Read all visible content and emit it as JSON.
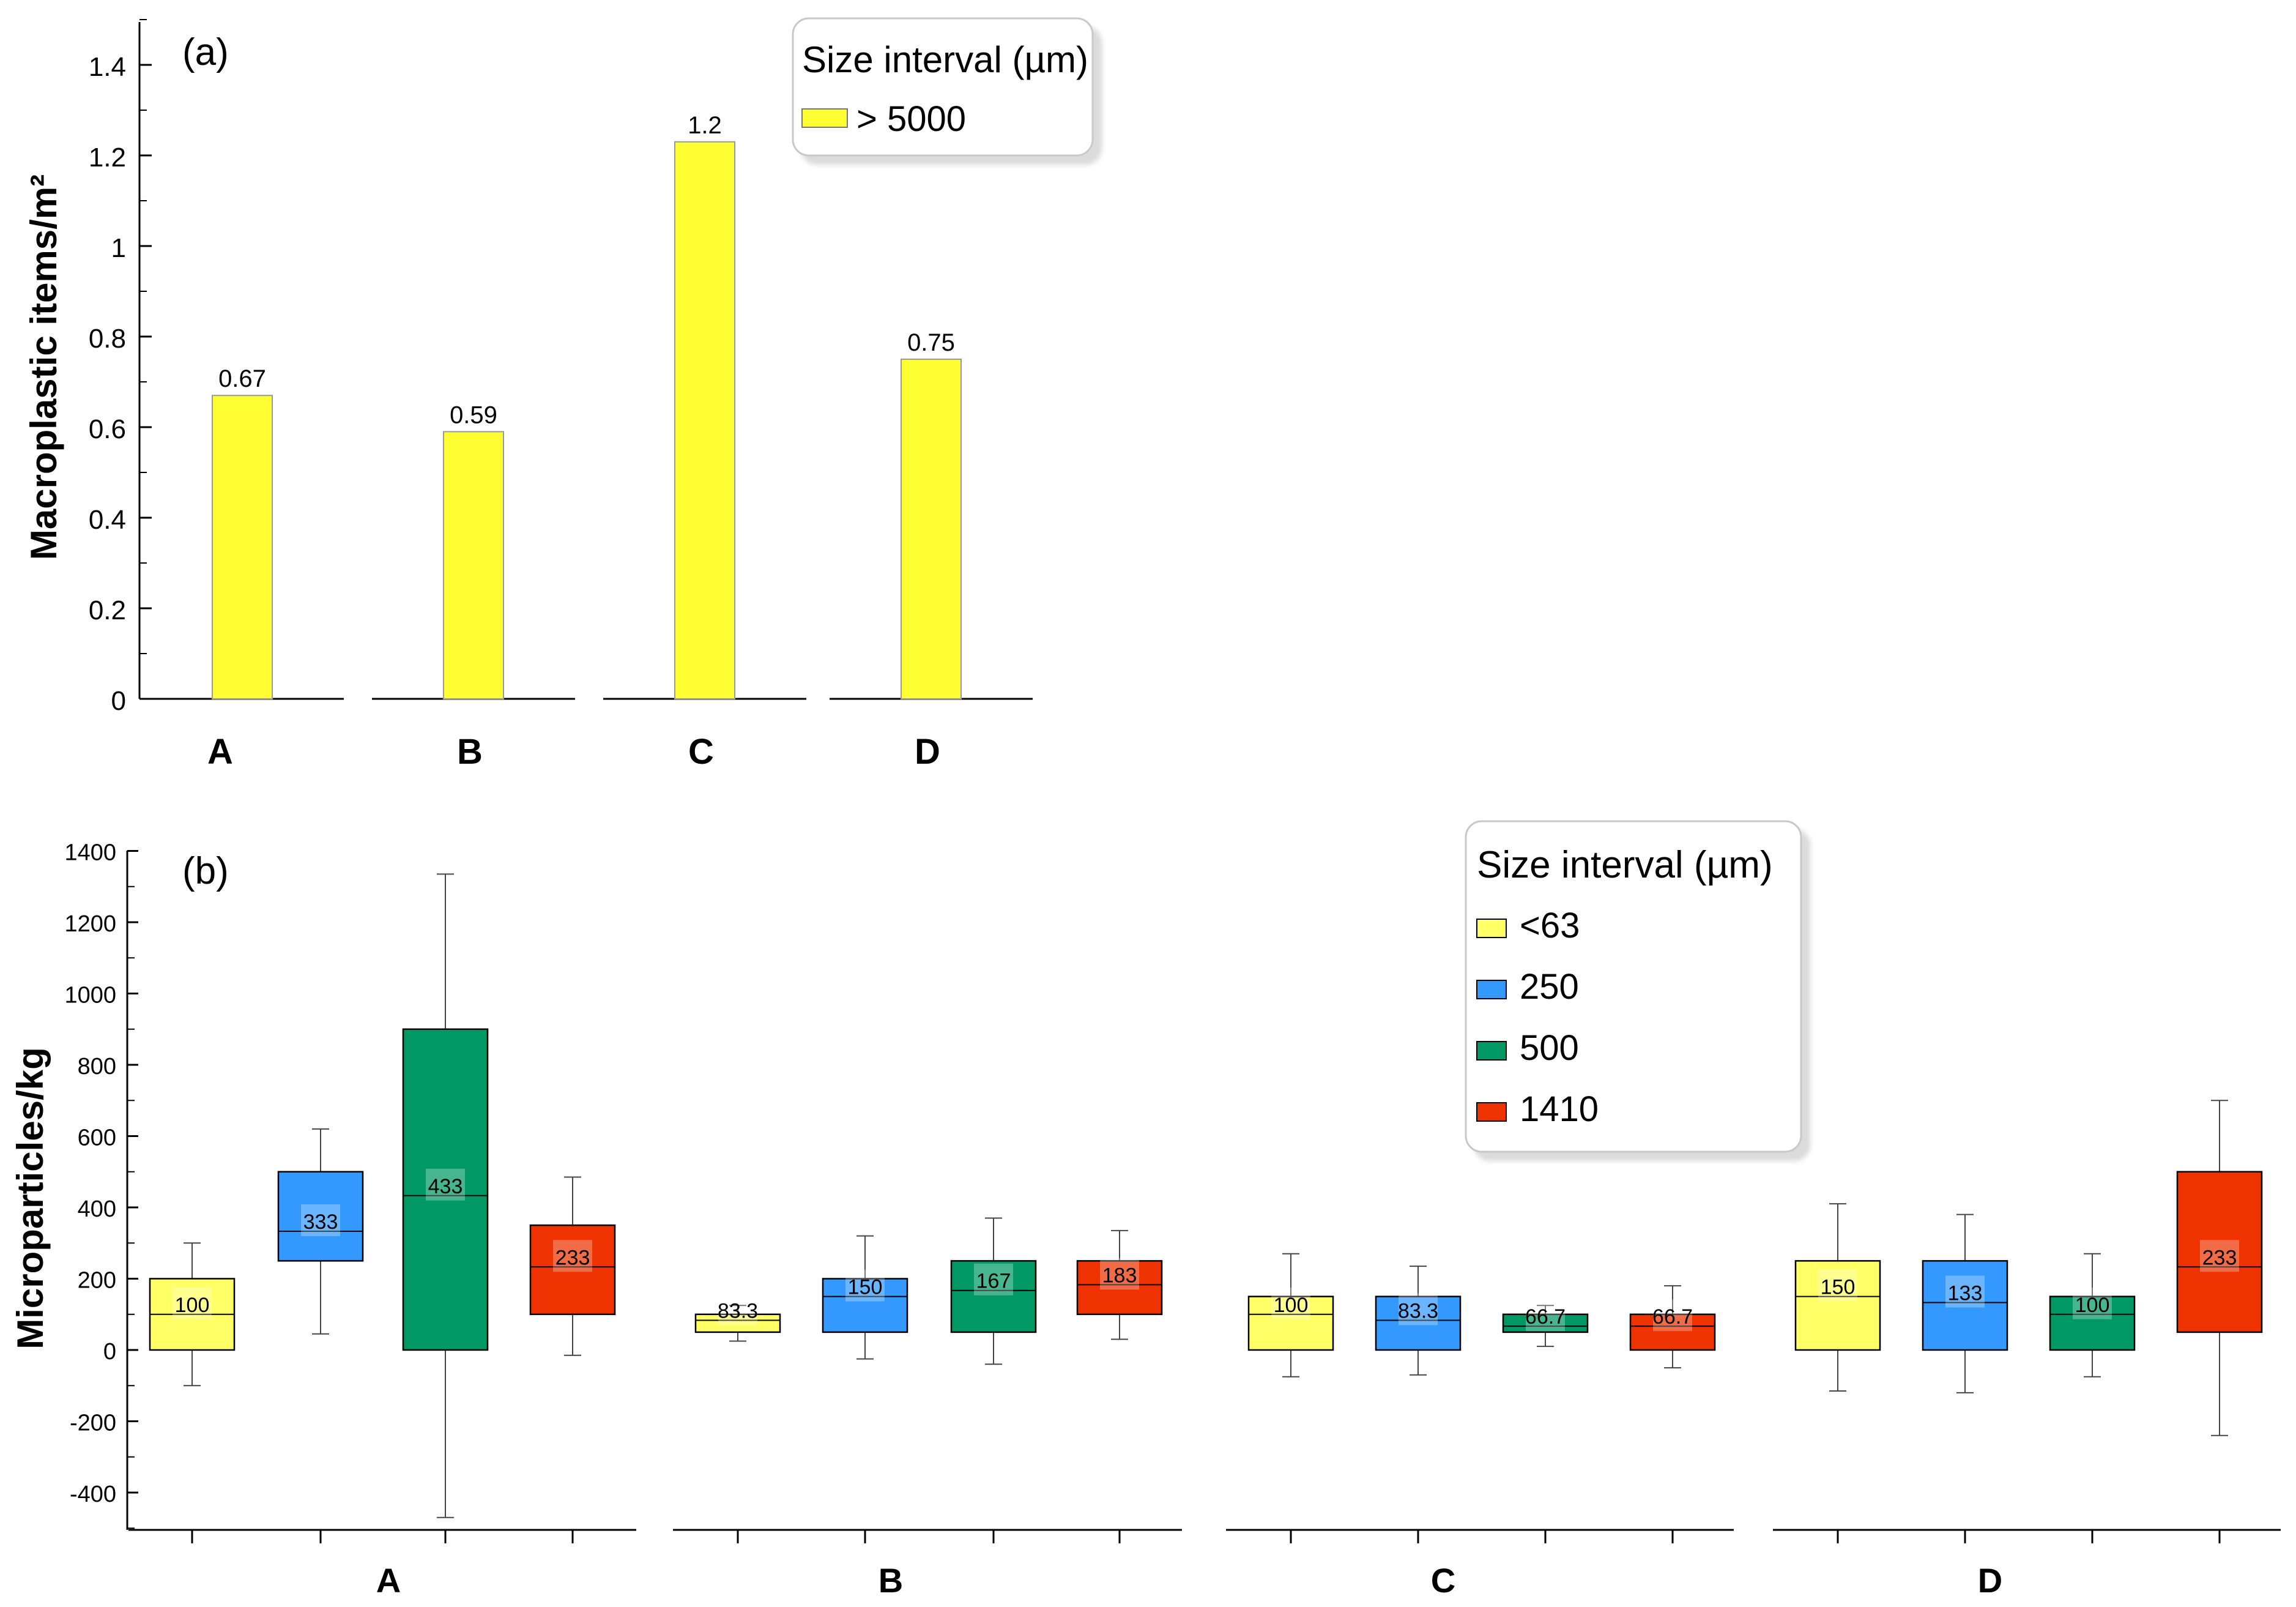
{
  "chart_data": [
    {
      "type": "bar",
      "panel_label": "(a)",
      "ylabel": "Macroplastic items/m²",
      "ylim": [
        0,
        1.5
      ],
      "yticks": [
        0,
        0.2,
        0.4,
        0.6,
        0.8,
        1,
        1.2,
        1.4
      ],
      "ytick_labels": [
        "0",
        "0.2",
        "0.4",
        "0.6",
        "0.8",
        "1",
        "1.2",
        "1.4"
      ],
      "categories": [
        "A",
        "B",
        "C",
        "D"
      ],
      "values": [
        0.67,
        0.59,
        1.23,
        0.75
      ],
      "value_labels": [
        "0.67",
        "0.59",
        "1.2",
        "0.75"
      ],
      "legend": {
        "title": "Size interval (µm)",
        "placement": "top-center",
        "entries": [
          {
            "label": "> 5000",
            "color": "#ffff33"
          }
        ]
      },
      "colors": {
        "bar": "#ffff33",
        "bar_edge": "#999999"
      }
    },
    {
      "type": "box",
      "panel_label": "(b)",
      "ylabel": "Microparticles/kg",
      "ylim": [
        -500,
        1400
      ],
      "yticks": [
        -400,
        -200,
        0,
        200,
        400,
        600,
        800,
        1000,
        1200,
        1400
      ],
      "ytick_labels": [
        "-400",
        "-200",
        "0",
        "200",
        "400",
        "600",
        "800",
        "1000",
        "1200",
        "1400"
      ],
      "categories": [
        "A",
        "B",
        "C",
        "D"
      ],
      "legend": {
        "title": "Size interval (µm)",
        "placement": "top-right",
        "entries": [
          {
            "label": "<63",
            "color": "#ffff66"
          },
          {
            "label": "250",
            "color": "#3399ff"
          },
          {
            "label": "500",
            "color": "#009966"
          },
          {
            "label": "1410",
            "color": "#ee3300"
          }
        ]
      },
      "series": [
        {
          "name": "<63",
          "color": "#ffff66",
          "boxes": [
            {
              "site": "A",
              "whisker_low": -100,
              "q1": 0,
              "median": 100,
              "q3": 200,
              "whisker_high": 300,
              "label": "100"
            },
            {
              "site": "B",
              "whisker_low": 25,
              "q1": 50,
              "median": 83.3,
              "q3": 100,
              "whisker_high": 125,
              "label": "83.3"
            },
            {
              "site": "C",
              "whisker_low": -75,
              "q1": 0,
              "median": 100,
              "q3": 150,
              "whisker_high": 270,
              "label": "100"
            },
            {
              "site": "D",
              "whisker_low": -115,
              "q1": 0,
              "median": 150,
              "q3": 250,
              "whisker_high": 410,
              "label": "150"
            }
          ]
        },
        {
          "name": "250",
          "color": "#3399ff",
          "boxes": [
            {
              "site": "A",
              "whisker_low": 45,
              "q1": 250,
              "median": 333,
              "q3": 500,
              "whisker_high": 620,
              "label": "333"
            },
            {
              "site": "B",
              "whisker_low": -25,
              "q1": 50,
              "median": 150,
              "q3": 200,
              "whisker_high": 320,
              "label": "150"
            },
            {
              "site": "C",
              "whisker_low": -70,
              "q1": 0,
              "median": 83.3,
              "q3": 150,
              "whisker_high": 235,
              "label": "83.3"
            },
            {
              "site": "D",
              "whisker_low": -120,
              "q1": 0,
              "median": 133,
              "q3": 250,
              "whisker_high": 380,
              "label": "133"
            }
          ]
        },
        {
          "name": "500",
          "color": "#009966",
          "boxes": [
            {
              "site": "A",
              "whisker_low": -470,
              "q1": 0,
              "median": 433,
              "q3": 900,
              "whisker_high": 1335,
              "label": "433"
            },
            {
              "site": "B",
              "whisker_low": -40,
              "q1": 50,
              "median": 167,
              "q3": 250,
              "whisker_high": 370,
              "label": "167"
            },
            {
              "site": "C",
              "whisker_low": 10,
              "q1": 50,
              "median": 66.7,
              "q3": 100,
              "whisker_high": 125,
              "label": "66.7"
            },
            {
              "site": "D",
              "whisker_low": -75,
              "q1": 0,
              "median": 100,
              "q3": 150,
              "whisker_high": 270,
              "label": "100"
            }
          ]
        },
        {
          "name": "1410",
          "color": "#ee3300",
          "boxes": [
            {
              "site": "A",
              "whisker_low": -15,
              "q1": 100,
              "median": 233,
              "q3": 350,
              "whisker_high": 485,
              "label": "233"
            },
            {
              "site": "B",
              "whisker_low": 30,
              "q1": 100,
              "median": 183,
              "q3": 250,
              "whisker_high": 335,
              "label": "183"
            },
            {
              "site": "C",
              "whisker_low": -50,
              "q1": 0,
              "median": 66.7,
              "q3": 100,
              "whisker_high": 180,
              "label": "66.7"
            },
            {
              "site": "D",
              "whisker_low": -240,
              "q1": 50,
              "median": 233,
              "q3": 500,
              "whisker_high": 700,
              "label": "233"
            }
          ]
        }
      ]
    }
  ]
}
